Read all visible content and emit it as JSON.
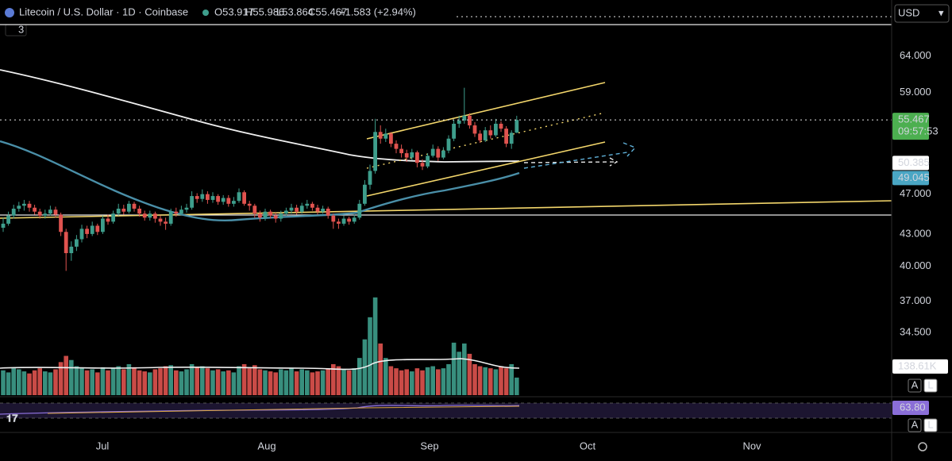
{
  "chart_data": {
    "type": "candlestick",
    "title": "Litecoin / U.S. Dollar · 1D · Coinbase",
    "legend_values": [
      "O53.917",
      "H55.986",
      "L53.864",
      "C55.467",
      "+1.583 (+2.94%)"
    ],
    "indicator_count": "3",
    "currency": "USD",
    "log_scale": true,
    "grid": false,
    "ylim": [
      29.9,
      72.5
    ],
    "yticks": [
      {
        "value": 64,
        "label": "64.000"
      },
      {
        "value": 59,
        "label": "59.000"
      },
      {
        "value": 47,
        "label": "47.000"
      },
      {
        "value": 43,
        "label": "43.000"
      },
      {
        "value": 40,
        "label": "40.000"
      },
      {
        "value": 37,
        "label": "37.000"
      },
      {
        "value": 34.5,
        "label": "34.500"
      }
    ],
    "x_labels": [
      "Jul",
      "Aug",
      "Sep",
      "Oct",
      "Nov"
    ],
    "up_color": "#3e9e8c",
    "down_color": "#e0534f",
    "candles": [
      [
        43.6,
        44.6,
        43.2,
        44.0
      ],
      [
        44.0,
        45.2,
        43.8,
        44.8
      ],
      [
        44.8,
        45.9,
        44.5,
        45.5
      ],
      [
        45.5,
        46.2,
        45.2,
        45.8
      ],
      [
        45.8,
        46.4,
        45.3,
        46.0
      ],
      [
        46.0,
        46.3,
        45.2,
        45.6
      ],
      [
        45.6,
        45.9,
        44.9,
        45.2
      ],
      [
        45.2,
        45.5,
        44.5,
        44.8
      ],
      [
        44.8,
        45.4,
        44.5,
        45.0
      ],
      [
        45.0,
        45.8,
        44.8,
        45.4
      ],
      [
        45.4,
        45.7,
        44.6,
        44.9
      ],
      [
        44.9,
        45.1,
        42.8,
        43.2
      ],
      [
        43.2,
        43.5,
        39.6,
        41.2
      ],
      [
        41.2,
        42.3,
        40.5,
        41.8
      ],
      [
        41.8,
        42.9,
        41.4,
        42.5
      ],
      [
        42.5,
        43.9,
        42.2,
        43.5
      ],
      [
        43.5,
        43.8,
        42.6,
        43.0
      ],
      [
        43.0,
        44.2,
        42.8,
        43.8
      ],
      [
        43.8,
        44.0,
        42.9,
        43.2
      ],
      [
        43.2,
        44.8,
        43.0,
        44.5
      ],
      [
        44.5,
        44.9,
        43.9,
        44.2
      ],
      [
        44.2,
        45.3,
        44.0,
        45.0
      ],
      [
        45.0,
        46.0,
        44.8,
        45.5
      ],
      [
        45.5,
        45.9,
        44.9,
        45.2
      ],
      [
        45.2,
        46.3,
        45.0,
        46.0
      ],
      [
        46.0,
        46.2,
        45.2,
        45.5
      ],
      [
        45.5,
        45.8,
        44.7,
        45.0
      ],
      [
        45.0,
        45.3,
        44.3,
        44.6
      ],
      [
        44.6,
        45.3,
        44.3,
        45.0
      ],
      [
        45.0,
        45.2,
        44.1,
        44.5
      ],
      [
        44.5,
        44.8,
        43.8,
        44.2
      ],
      [
        44.2,
        44.6,
        43.4,
        44.0
      ],
      [
        44.0,
        45.5,
        43.8,
        45.2
      ],
      [
        45.2,
        45.6,
        44.7,
        45.0
      ],
      [
        45.0,
        45.8,
        44.8,
        45.4
      ],
      [
        45.4,
        46.0,
        45.1,
        45.6
      ],
      [
        45.6,
        47.3,
        45.4,
        46.8
      ],
      [
        46.8,
        47.1,
        46.1,
        46.5
      ],
      [
        46.5,
        47.5,
        46.2,
        47.0
      ],
      [
        47.0,
        47.3,
        46.0,
        46.4
      ],
      [
        46.4,
        47.2,
        46.1,
        46.8
      ],
      [
        46.8,
        47.0,
        45.9,
        46.2
      ],
      [
        46.2,
        46.9,
        45.9,
        46.6
      ],
      [
        46.6,
        46.9,
        45.7,
        46.0
      ],
      [
        46.0,
        46.7,
        45.7,
        46.3
      ],
      [
        46.3,
        47.6,
        46.1,
        47.2
      ],
      [
        47.2,
        47.4,
        45.8,
        46.0
      ],
      [
        46.0,
        46.3,
        45.3,
        45.8
      ],
      [
        45.8,
        46.0,
        44.6,
        45.0
      ],
      [
        45.0,
        45.3,
        44.2,
        44.6
      ],
      [
        44.6,
        45.5,
        44.3,
        45.2
      ],
      [
        45.2,
        45.4,
        44.5,
        44.8
      ],
      [
        44.8,
        45.1,
        44.1,
        44.5
      ],
      [
        44.5,
        45.3,
        44.2,
        45.0
      ],
      [
        45.0,
        45.6,
        44.8,
        45.3
      ],
      [
        45.3,
        46.0,
        45.0,
        45.6
      ],
      [
        45.6,
        45.9,
        44.9,
        45.2
      ],
      [
        45.2,
        46.1,
        45.0,
        45.8
      ],
      [
        45.8,
        46.4,
        45.5,
        46.0
      ],
      [
        46.0,
        46.2,
        45.3,
        45.6
      ],
      [
        45.6,
        45.9,
        44.9,
        45.2
      ],
      [
        45.2,
        45.8,
        45.0,
        45.5
      ],
      [
        45.5,
        45.7,
        44.5,
        44.8
      ],
      [
        44.8,
        45.0,
        43.5,
        44.2
      ],
      [
        44.2,
        44.5,
        43.5,
        44.0
      ],
      [
        44.0,
        44.8,
        43.8,
        44.5
      ],
      [
        44.5,
        44.7,
        43.9,
        44.2
      ],
      [
        44.2,
        44.9,
        44.0,
        44.6
      ],
      [
        44.6,
        46.4,
        44.4,
        46.0
      ],
      [
        46.0,
        48.5,
        45.8,
        48.0
      ],
      [
        48.0,
        50.2,
        47.5,
        49.5
      ],
      [
        49.5,
        55.6,
        49.2,
        54.0
      ],
      [
        54.0,
        54.8,
        52.6,
        53.2
      ],
      [
        53.2,
        54.4,
        52.8,
        53.8
      ],
      [
        53.8,
        54.0,
        52.2,
        52.6
      ],
      [
        52.6,
        53.0,
        51.5,
        52.0
      ],
      [
        52.0,
        52.5,
        51.0,
        51.5
      ],
      [
        51.5,
        51.9,
        50.5,
        51.0
      ],
      [
        51.0,
        52.0,
        50.7,
        51.6
      ],
      [
        51.6,
        51.8,
        49.9,
        50.4
      ],
      [
        50.4,
        50.8,
        49.6,
        50.0
      ],
      [
        50.0,
        51.5,
        49.8,
        51.2
      ],
      [
        51.2,
        52.5,
        51.0,
        52.0
      ],
      [
        52.0,
        52.3,
        50.6,
        51.0
      ],
      [
        51.0,
        52.2,
        50.8,
        51.8
      ],
      [
        51.8,
        53.6,
        51.5,
        53.2
      ],
      [
        53.2,
        55.5,
        52.9,
        55.0
      ],
      [
        55.0,
        56.0,
        54.5,
        55.4
      ],
      [
        55.4,
        59.6,
        55.0,
        56.0
      ],
      [
        56.0,
        56.3,
        54.4,
        54.8
      ],
      [
        54.8,
        55.2,
        53.4,
        53.8
      ],
      [
        53.8,
        54.2,
        52.7,
        53.0
      ],
      [
        53.0,
        54.6,
        52.8,
        54.2
      ],
      [
        54.2,
        54.8,
        53.2,
        53.6
      ],
      [
        53.6,
        55.6,
        53.4,
        55.0
      ],
      [
        55.0,
        55.3,
        54.0,
        54.4
      ],
      [
        54.4,
        54.7,
        52.2,
        52.6
      ],
      [
        52.6,
        54.2,
        52.0,
        53.9
      ],
      [
        53.917,
        55.986,
        53.864,
        55.467
      ]
    ],
    "volume_lim": [
      0,
      480
    ],
    "volume": [
      120,
      110,
      130,
      125,
      115,
      105,
      120,
      130,
      115,
      110,
      125,
      160,
      190,
      170,
      140,
      130,
      120,
      125,
      110,
      135,
      120,
      130,
      140,
      125,
      150,
      135,
      120,
      115,
      110,
      125,
      130,
      140,
      145,
      120,
      115,
      125,
      150,
      135,
      140,
      130,
      120,
      125,
      115,
      120,
      110,
      140,
      150,
      130,
      145,
      125,
      120,
      115,
      110,
      125,
      120,
      130,
      115,
      125,
      120,
      110,
      115,
      120,
      130,
      150,
      140,
      125,
      120,
      130,
      180,
      270,
      377,
      473,
      250,
      180,
      140,
      130,
      120,
      125,
      115,
      130,
      120,
      135,
      140,
      125,
      130,
      150,
      254,
      210,
      250,
      200,
      150,
      140,
      135,
      130,
      125,
      140,
      130,
      150,
      85
    ],
    "last_price": 55.467,
    "countdown": "09:57:53",
    "ma_200": 50.385,
    "ma_50": 49.045,
    "volume_ma": {
      "value": 138.61,
      "label": "138.61K"
    },
    "rsi": {
      "value": 63.8,
      "label": "63.80"
    },
    "scale_buttons": [
      "A",
      "L"
    ]
  }
}
